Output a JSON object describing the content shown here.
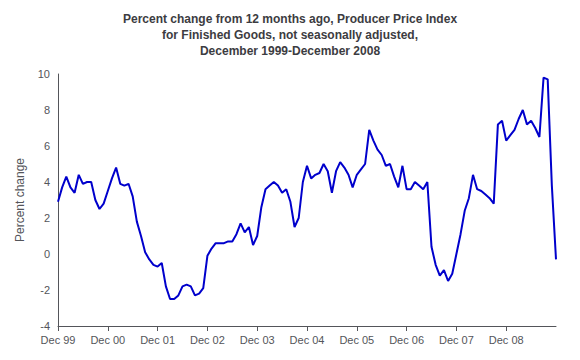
{
  "chart_data": {
    "type": "line",
    "title": "Percent change from 12 months ago, Producer Price Index\nfor Finished Goods, not seasonally adjusted,\nDecember 1999-December 2008",
    "ylabel": "Percent change",
    "color": "#0000CC",
    "grid": false,
    "ylim": [
      -4,
      10
    ],
    "yticks": [
      -4,
      -2,
      0,
      2,
      4,
      6,
      8,
      10
    ],
    "categories": [
      "Dec 99",
      null,
      null,
      null,
      null,
      null,
      null,
      null,
      null,
      null,
      null,
      null,
      "Dec 00",
      null,
      null,
      null,
      null,
      null,
      null,
      null,
      null,
      null,
      null,
      null,
      "Dec 01",
      null,
      null,
      null,
      null,
      null,
      null,
      null,
      null,
      null,
      null,
      null,
      "Dec 02",
      null,
      null,
      null,
      null,
      null,
      null,
      null,
      null,
      null,
      null,
      null,
      "Dec 03",
      null,
      null,
      null,
      null,
      null,
      null,
      null,
      null,
      null,
      null,
      null,
      "Dec 04",
      null,
      null,
      null,
      null,
      null,
      null,
      null,
      null,
      null,
      null,
      null,
      "Dec 05",
      null,
      null,
      null,
      null,
      null,
      null,
      null,
      null,
      null,
      null,
      null,
      "Dec 06",
      null,
      null,
      null,
      null,
      null,
      null,
      null,
      null,
      null,
      null,
      null,
      "Dec 07",
      null,
      null,
      null,
      null,
      null,
      null,
      null,
      null,
      null,
      null,
      null,
      "Dec 08",
      null,
      null,
      null,
      null,
      null,
      null,
      null,
      null,
      null,
      null,
      null,
      null
    ],
    "values": [
      2.9,
      3.7,
      4.3,
      3.7,
      3.4,
      4.4,
      3.9,
      4.0,
      4.0,
      3.0,
      2.5,
      2.8,
      3.5,
      4.2,
      4.8,
      3.9,
      3.8,
      3.9,
      3.2,
      1.8,
      1.0,
      0.1,
      -0.3,
      -0.6,
      -0.7,
      -0.5,
      -1.8,
      -2.5,
      -2.5,
      -2.3,
      -1.8,
      -1.7,
      -1.8,
      -2.3,
      -2.2,
      -1.9,
      -0.1,
      0.3,
      0.6,
      0.6,
      0.6,
      0.7,
      0.7,
      1.1,
      1.7,
      1.2,
      1.5,
      0.5,
      1.0,
      2.6,
      3.6,
      3.8,
      4.0,
      3.8,
      3.4,
      3.6,
      2.9,
      1.5,
      2.0,
      4.0,
      4.9,
      4.2,
      4.4,
      4.5,
      5.0,
      4.6,
      3.4,
      4.6,
      5.1,
      4.8,
      4.4,
      3.7,
      4.4,
      4.7,
      5.0,
      6.9,
      6.3,
      5.8,
      5.5,
      4.9,
      5.0,
      4.3,
      3.7,
      4.9,
      3.6,
      3.6,
      4.0,
      3.8,
      3.6,
      4.0,
      0.4,
      -0.6,
      -1.2,
      -0.9,
      -1.5,
      -1.1,
      0.0,
      1.1,
      2.4,
      3.1,
      4.4,
      3.6,
      3.5,
      3.3,
      3.1,
      2.8,
      7.2,
      7.4,
      6.3,
      6.6,
      6.9,
      7.5,
      8.0,
      7.2,
      7.4,
      7.0,
      6.5,
      9.8,
      9.7,
      3.8,
      -0.3
    ]
  }
}
